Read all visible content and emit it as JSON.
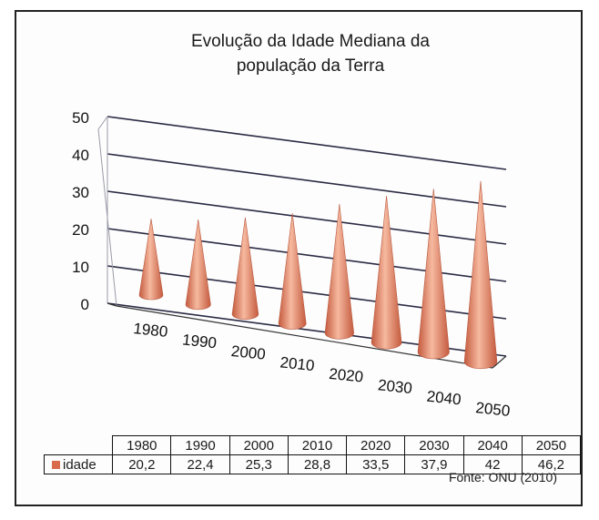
{
  "chart_data": {
    "type": "bar",
    "shape": "3d-cone",
    "title": "Evolução da Idade Mediana da população da Terra",
    "title_lines": [
      "Evolução da Idade Mediana da",
      "população da Terra"
    ],
    "categories": [
      "1980",
      "1990",
      "2000",
      "2010",
      "2020",
      "2030",
      "2040",
      "2050"
    ],
    "series": [
      {
        "name": "idade",
        "values": [
          20.2,
          22.4,
          25.3,
          28.8,
          33.5,
          37.9,
          42,
          46.2
        ]
      }
    ],
    "y_ticks": [
      "0",
      "10",
      "20",
      "30",
      "40",
      "50"
    ],
    "ylim": [
      0,
      50
    ],
    "grid": true,
    "legend": "in data table",
    "colors": {
      "cone": "#e8876a",
      "cone_dark": "#c45a3e",
      "cone_light": "#f6b99f"
    },
    "data_table": {
      "header": [
        "1980",
        "1990",
        "2000",
        "2010",
        "2020",
        "2030",
        "2040",
        "2050"
      ],
      "label": "idade",
      "values": [
        "20,2",
        "22,4",
        "25,3",
        "28,8",
        "33,5",
        "37,9",
        "42",
        "46,2"
      ]
    },
    "source": "Fonte: ONU (2010)"
  }
}
